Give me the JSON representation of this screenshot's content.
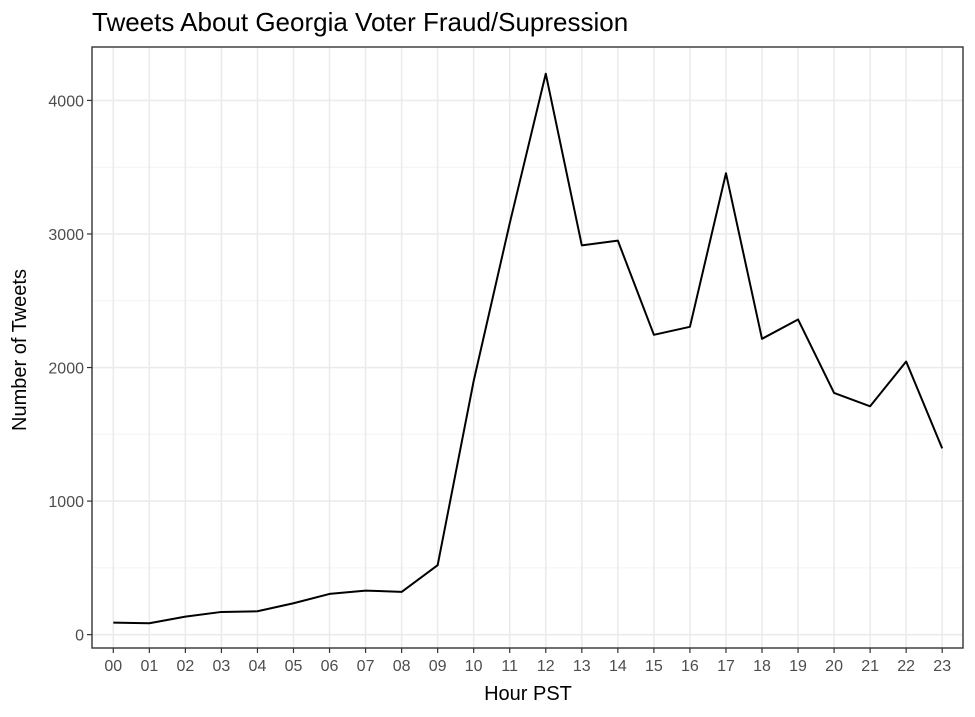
{
  "chart_data": {
    "type": "line",
    "title": "Tweets About Georgia Voter Fraud/Supression",
    "xlabel": "Hour PST",
    "ylabel": "Number of Tweets",
    "categories": [
      "00",
      "01",
      "02",
      "03",
      "04",
      "05",
      "06",
      "07",
      "08",
      "09",
      "10",
      "11",
      "12",
      "13",
      "14",
      "15",
      "16",
      "17",
      "18",
      "19",
      "20",
      "21",
      "22",
      "23"
    ],
    "series": [
      {
        "values": [
          90,
          85,
          135,
          170,
          175,
          235,
          305,
          330,
          320,
          520,
          1900,
          3080,
          4200,
          2915,
          2950,
          2245,
          2305,
          3455,
          2215,
          2360,
          1810,
          1710,
          2045,
          1395
        ]
      }
    ],
    "ylim": [
      -100,
      4400
    ],
    "yticks": [
      0,
      1000,
      2000,
      3000,
      4000
    ],
    "grid": true,
    "colors": {
      "line": "#000000",
      "grid_major": "#ebebeb",
      "grid_minor": "#f4f4f4",
      "panel_border": "#333333",
      "tick_text": "#4d4d4d"
    }
  }
}
